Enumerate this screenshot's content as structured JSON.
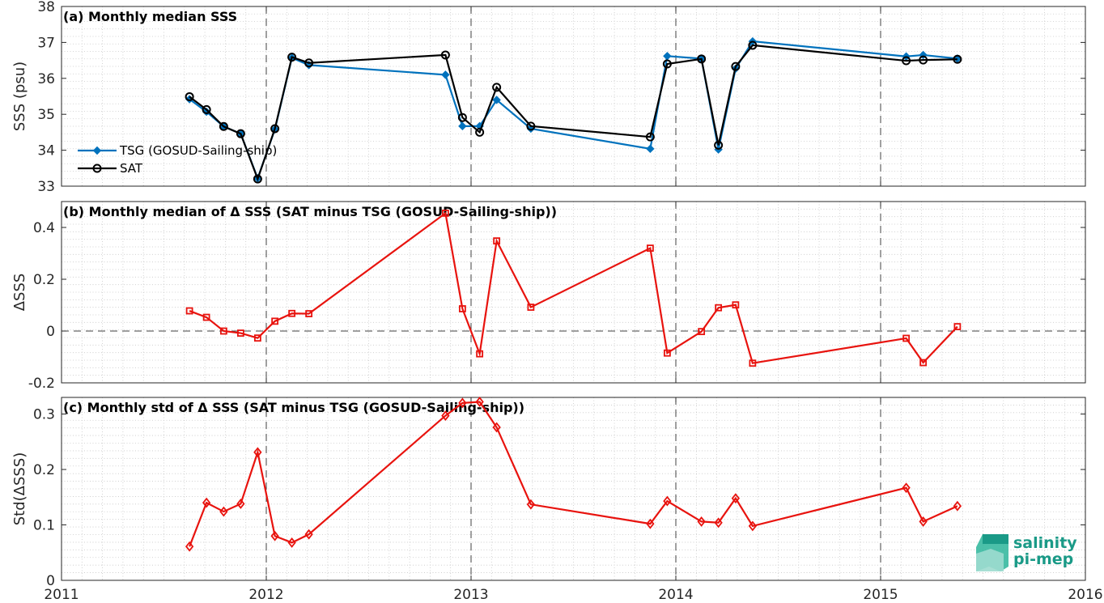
{
  "figure": {
    "logo": {
      "line1": "salinity",
      "line2": "pi-mep",
      "color": "#1a9a87"
    }
  },
  "chart_data": [
    {
      "type": "line",
      "title": "(a) Monthly median SSS",
      "ylabel": "SSS (psu)",
      "xlabel": "",
      "xlim": [
        2011,
        2016
      ],
      "ylim": [
        33,
        38
      ],
      "x_ticks": [
        2011,
        2012,
        2013,
        2014,
        2015,
        2016
      ],
      "y_ticks": [
        33,
        34,
        35,
        36,
        37,
        38
      ],
      "grid": "minor dotted",
      "legend": "bottom-left",
      "series": [
        {
          "name": "TSG (GOSUD-Sailing-ship)",
          "color": "#0072bd",
          "marker": "filled-diamond",
          "x": [
            2011.625,
            2011.708,
            2011.792,
            2011.875,
            2011.958,
            2012.042,
            2012.125,
            2012.208,
            2012.875,
            2012.958,
            2013.042,
            2013.125,
            2013.292,
            2013.875,
            2013.958,
            2014.125,
            2014.208,
            2014.292,
            2014.375,
            2015.125,
            2015.208,
            2015.375
          ],
          "values": [
            35.42,
            35.07,
            34.66,
            34.46,
            33.22,
            34.58,
            36.57,
            36.37,
            36.1,
            34.67,
            34.67,
            35.4,
            34.6,
            34.04,
            36.62,
            36.55,
            34.02,
            36.27,
            37.03,
            36.61,
            36.65,
            36.55
          ]
        },
        {
          "name": "SAT",
          "color": "#000000",
          "marker": "open-circle",
          "x": [
            2011.625,
            2011.708,
            2011.792,
            2011.875,
            2011.958,
            2012.042,
            2012.125,
            2012.208,
            2012.875,
            2012.958,
            2013.042,
            2013.125,
            2013.292,
            2013.875,
            2013.958,
            2014.125,
            2014.208,
            2014.292,
            2014.375,
            2015.125,
            2015.208,
            2015.375
          ],
          "values": [
            35.49,
            35.13,
            34.66,
            34.46,
            33.2,
            34.6,
            36.59,
            36.43,
            36.65,
            34.91,
            34.5,
            35.75,
            34.67,
            34.37,
            36.4,
            36.54,
            34.14,
            36.33,
            36.92,
            36.49,
            36.51,
            36.53
          ]
        }
      ]
    },
    {
      "type": "line",
      "title": "(b) Monthly median of Δ SSS (SAT minus TSG (GOSUD-Sailing-ship))",
      "ylabel": "ΔSSS",
      "xlabel": "",
      "xlim": [
        2011,
        2016
      ],
      "ylim": [
        -0.2,
        0.5
      ],
      "x_ticks": [
        2011,
        2012,
        2013,
        2014,
        2015,
        2016
      ],
      "y_ticks": [
        -0.2,
        0,
        0.2,
        0.4
      ],
      "y_tick_labels": [
        "-0.2",
        "0",
        "0.2",
        "0.4"
      ],
      "zero_line": true,
      "grid": "minor dotted",
      "series": [
        {
          "color": "#e8130e",
          "marker": "open-square",
          "x": [
            2011.625,
            2011.708,
            2011.792,
            2011.875,
            2011.958,
            2012.042,
            2012.125,
            2012.208,
            2012.875,
            2012.958,
            2013.042,
            2013.125,
            2013.292,
            2013.875,
            2013.958,
            2014.125,
            2014.208,
            2014.292,
            2014.375,
            2015.125,
            2015.208,
            2015.375
          ],
          "values": [
            0.078,
            0.053,
            0.0,
            -0.008,
            -0.027,
            0.038,
            0.068,
            0.067,
            0.455,
            0.086,
            -0.088,
            0.348,
            0.092,
            0.32,
            -0.085,
            -0.002,
            0.09,
            0.101,
            -0.124,
            -0.028,
            -0.122,
            0.017
          ]
        }
      ]
    },
    {
      "type": "line",
      "title": "(c) Monthly std of Δ SSS (SAT minus TSG (GOSUD-Sailing-ship))",
      "ylabel": "Std(ΔSSS)",
      "xlabel": "",
      "xlim": [
        2011,
        2016
      ],
      "ylim": [
        0,
        0.33
      ],
      "x_ticks": [
        2011,
        2012,
        2013,
        2014,
        2015,
        2016
      ],
      "x_tick_labels": [
        "2011",
        "2012",
        "2013",
        "2014",
        "2015",
        "2016"
      ],
      "y_ticks": [
        0,
        0.1,
        0.2,
        0.3
      ],
      "y_tick_labels": [
        "0",
        "0.1",
        "0.2",
        "0.3"
      ],
      "grid": "minor dotted",
      "series": [
        {
          "color": "#e8130e",
          "marker": "open-diamond",
          "x": [
            2011.625,
            2011.708,
            2011.792,
            2011.875,
            2011.958,
            2012.042,
            2012.125,
            2012.208,
            2012.875,
            2012.958,
            2013.042,
            2013.125,
            2013.292,
            2013.875,
            2013.958,
            2014.125,
            2014.208,
            2014.292,
            2014.375,
            2015.125,
            2015.208,
            2015.375
          ],
          "values": [
            0.061,
            0.14,
            0.124,
            0.138,
            0.231,
            0.08,
            0.068,
            0.083,
            0.297,
            0.32,
            0.322,
            0.276,
            0.137,
            0.102,
            0.143,
            0.106,
            0.104,
            0.148,
            0.098,
            0.167,
            0.106,
            0.134
          ]
        }
      ]
    }
  ]
}
